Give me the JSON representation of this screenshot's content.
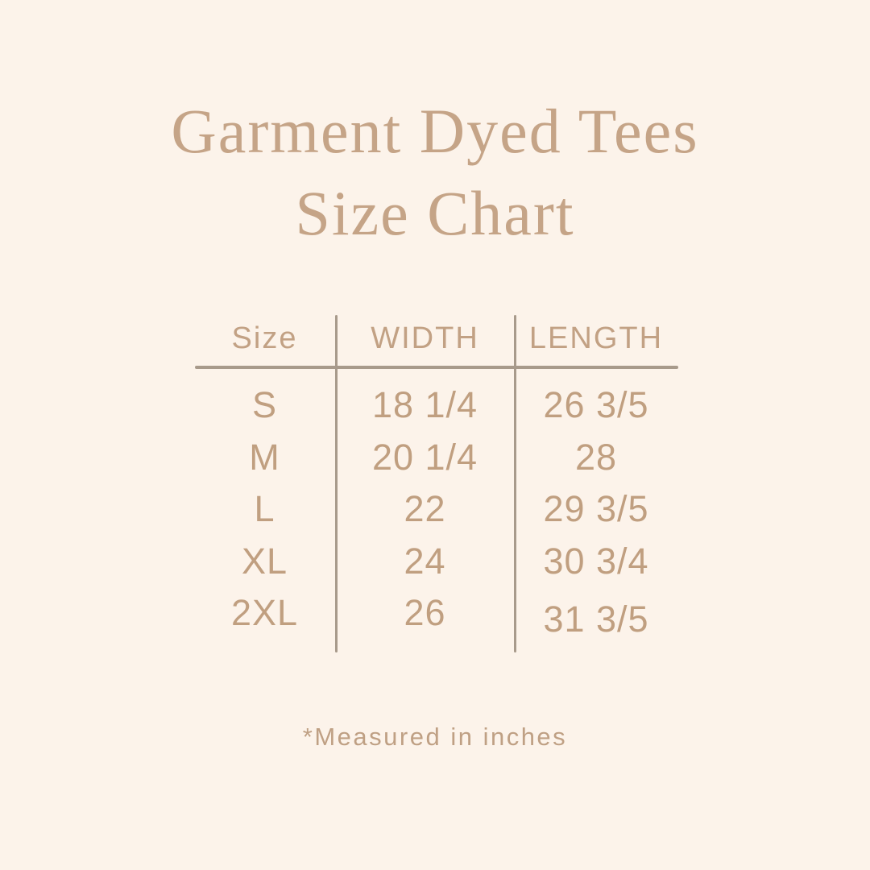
{
  "page": {
    "background_color": "#fcf3ea",
    "accent_text_color": "#c5a487",
    "table_text_color": "#c09f80",
    "line_color": "#a89a8b"
  },
  "title": {
    "line1": "Garment Dyed Tees",
    "line2": "Size Chart"
  },
  "table": {
    "headers": [
      "Size",
      "WIDTH",
      "LENGTH"
    ],
    "rows": [
      {
        "size": "S",
        "width": "18 1/4",
        "length": "26 3/5"
      },
      {
        "size": "M",
        "width": "20 1/4",
        "length": "28"
      },
      {
        "size": "L",
        "width": "22",
        "length": "29 3/5"
      },
      {
        "size": "XL",
        "width": "24",
        "length": "30 3/4"
      },
      {
        "size": "2XL",
        "width": "26",
        "length": "31 3/5"
      }
    ]
  },
  "footnote": {
    "text": "*Measured in inches"
  }
}
